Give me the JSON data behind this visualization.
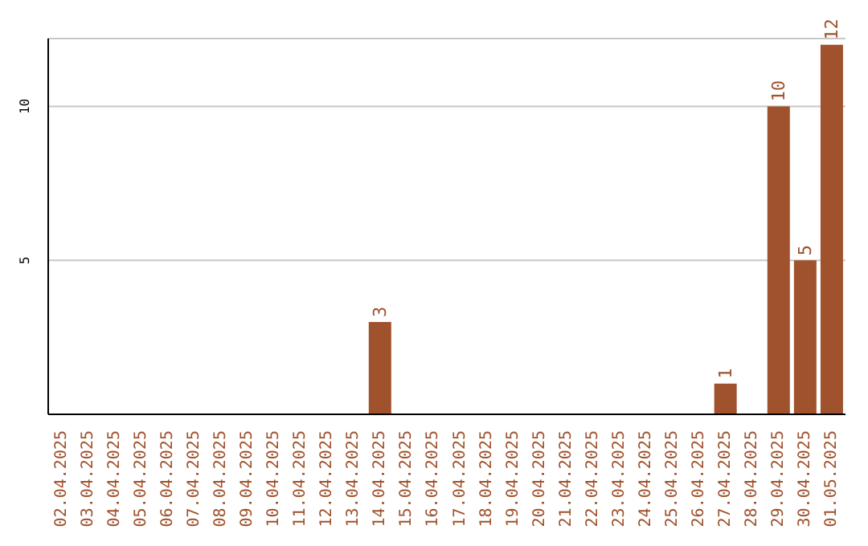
{
  "chart_data": {
    "type": "bar",
    "categories": [
      "02.04.2025",
      "03.04.2025",
      "04.04.2025",
      "05.04.2025",
      "06.04.2025",
      "07.04.2025",
      "08.04.2025",
      "09.04.2025",
      "10.04.2025",
      "11.04.2025",
      "12.04.2025",
      "13.04.2025",
      "14.04.2025",
      "15.04.2025",
      "16.04.2025",
      "17.04.2025",
      "18.04.2025",
      "19.04.2025",
      "20.04.2025",
      "21.04.2025",
      "22.04.2025",
      "23.04.2025",
      "24.04.2025",
      "25.04.2025",
      "26.04.2025",
      "27.04.2025",
      "28.04.2025",
      "29.04.2025",
      "30.04.2025",
      "01.05.2025"
    ],
    "values": [
      0,
      0,
      0,
      0,
      0,
      0,
      0,
      0,
      0,
      0,
      0,
      0,
      3,
      0,
      0,
      0,
      0,
      0,
      0,
      0,
      0,
      0,
      0,
      0,
      0,
      1,
      0,
      10,
      5,
      12
    ],
    "value_labels": [
      null,
      null,
      null,
      null,
      null,
      null,
      null,
      null,
      null,
      null,
      null,
      null,
      "3",
      null,
      null,
      null,
      null,
      null,
      null,
      null,
      null,
      null,
      null,
      null,
      null,
      "1",
      null,
      "10",
      "5",
      "12"
    ],
    "color": "#a0522d",
    "ylim": [
      0,
      12.2
    ],
    "yticks": [
      5,
      10
    ],
    "grid": "y"
  }
}
